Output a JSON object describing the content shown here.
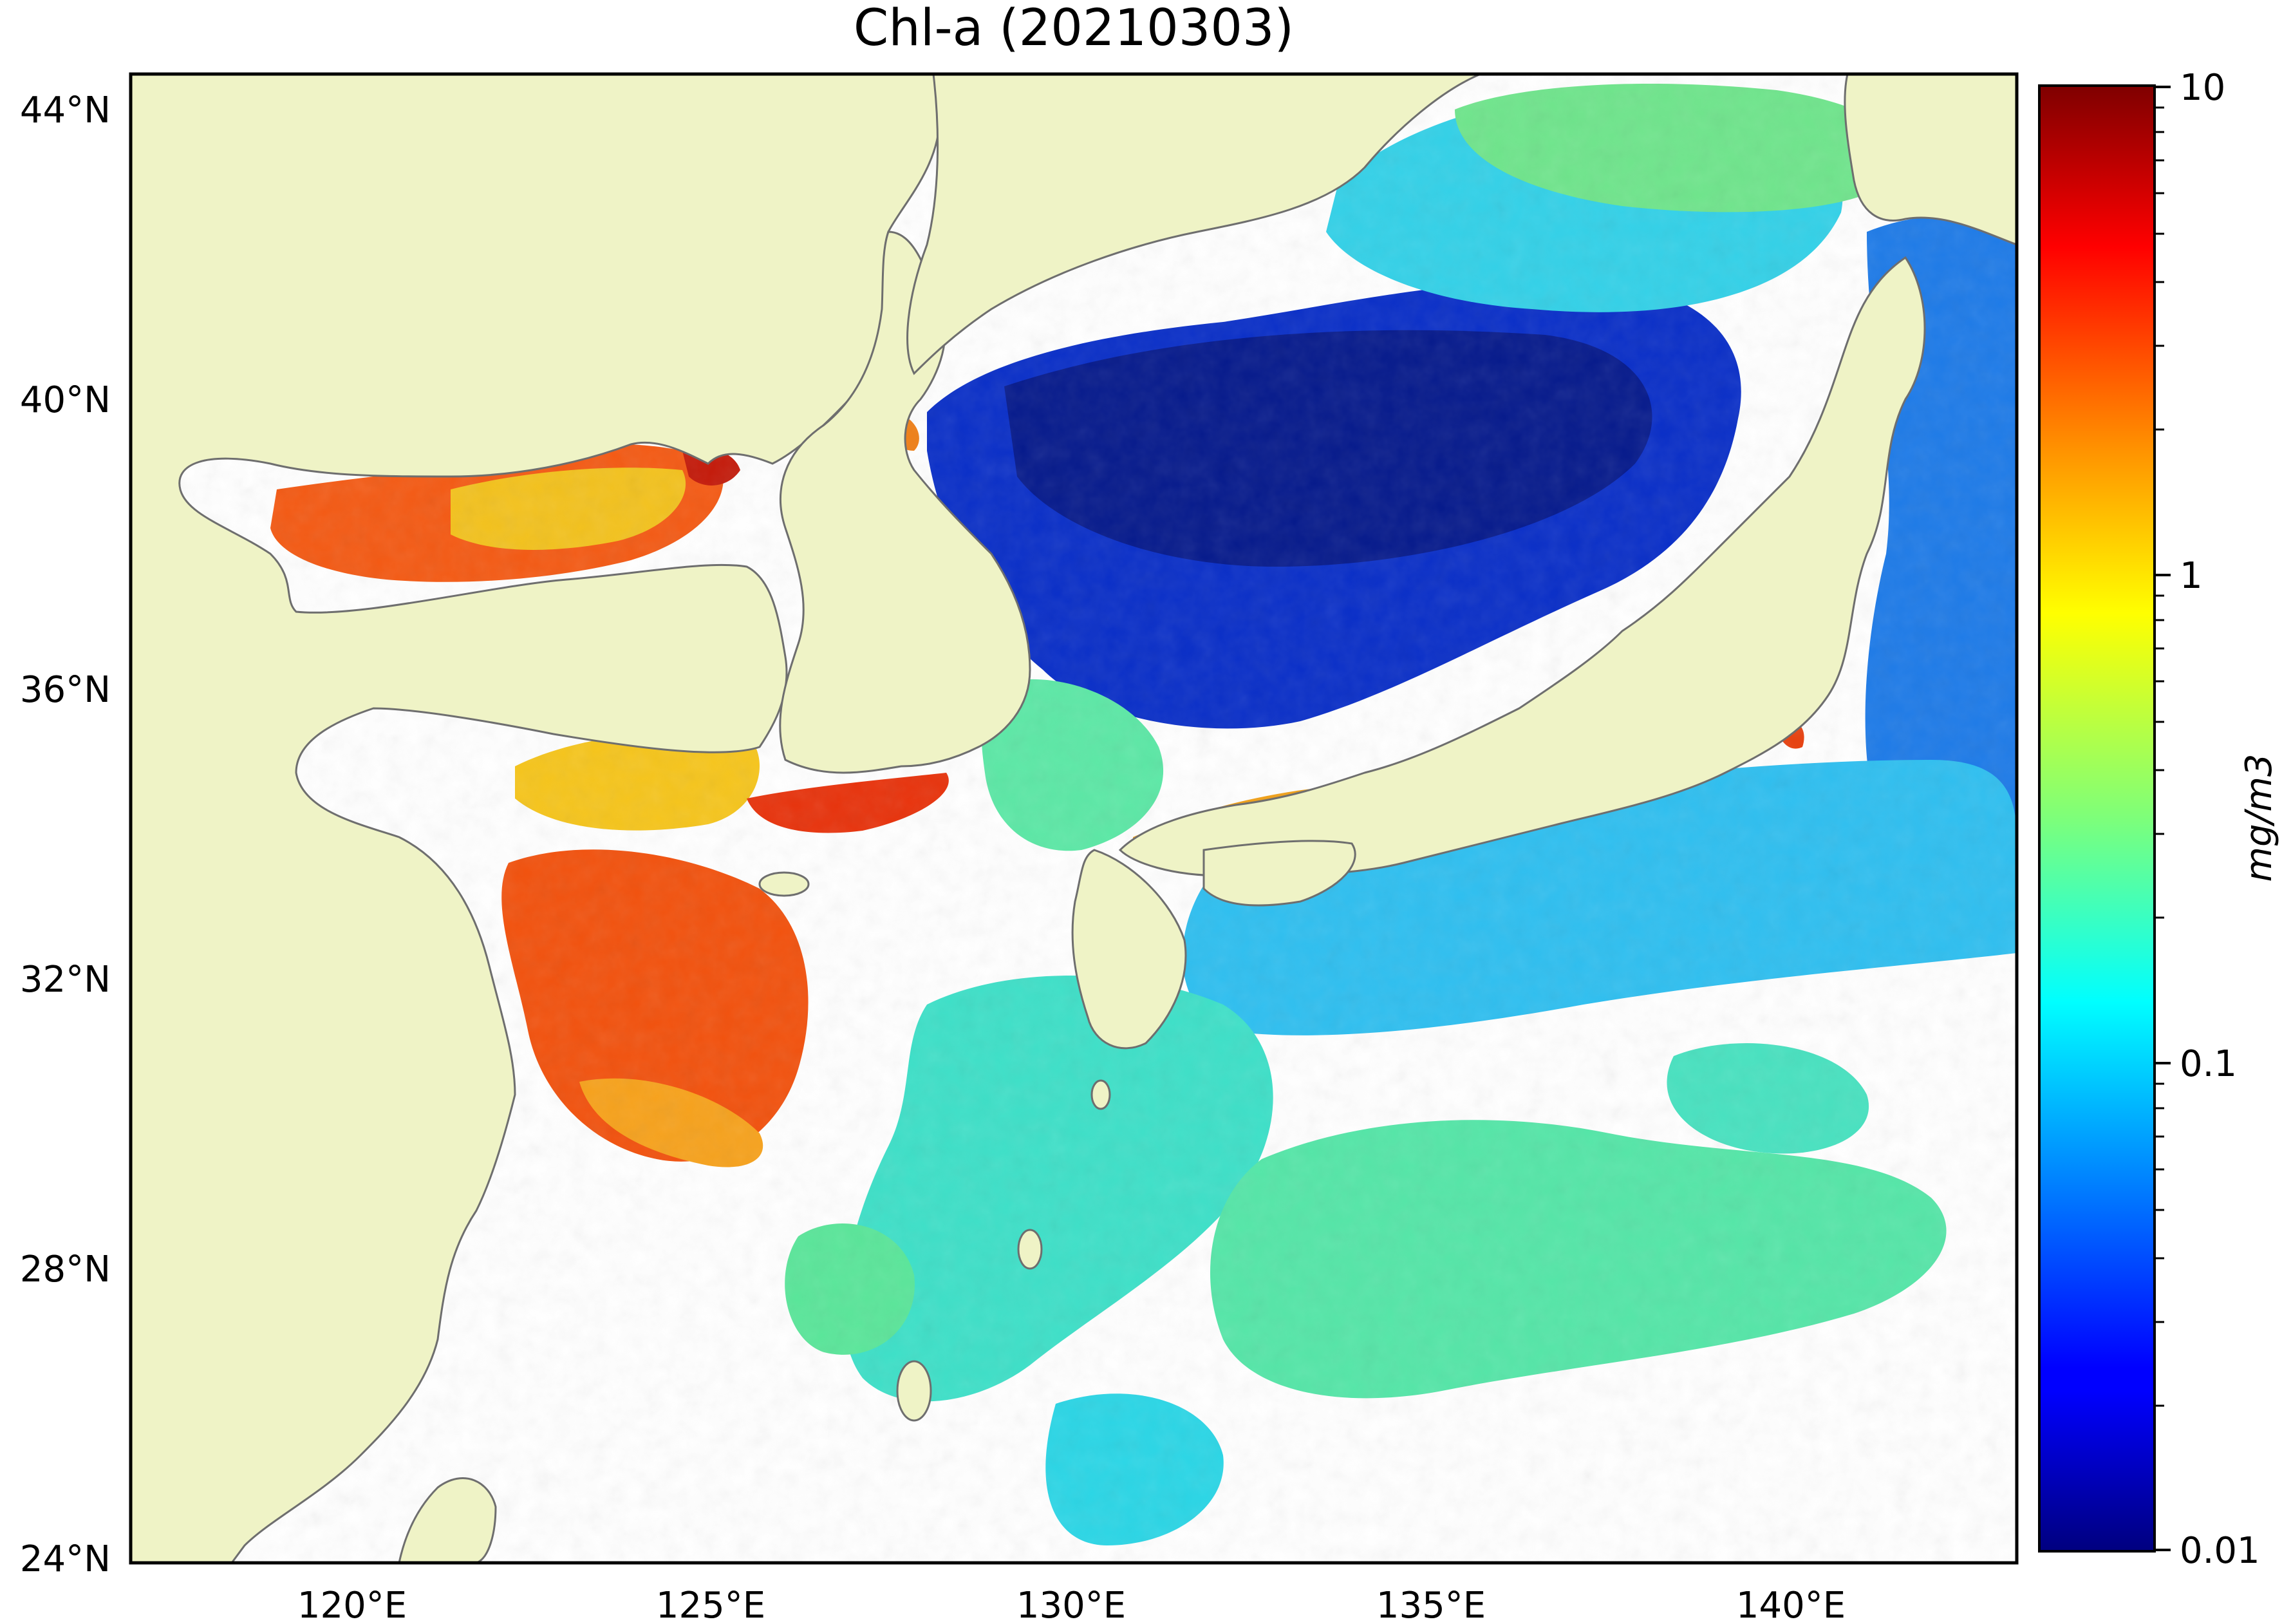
{
  "title": "Chl-a (20210303)",
  "lat_ticks": [
    "44°N",
    "40°N",
    "36°N",
    "32°N",
    "28°N",
    "24°N"
  ],
  "lon_ticks": [
    "120°E",
    "125°E",
    "130°E",
    "135°E",
    "140°E"
  ],
  "colorbar": {
    "label": "mg/m3",
    "ticks": [
      "10",
      "1",
      "0.1",
      "0.01"
    ],
    "range": [
      0.01,
      10
    ],
    "scale": "log",
    "colormap": "jet"
  },
  "colors": {
    "land": "#EFF3C6",
    "coastline": "#6E6E6E",
    "no_data": "#FFFFFF",
    "frame": "#000000"
  }
}
